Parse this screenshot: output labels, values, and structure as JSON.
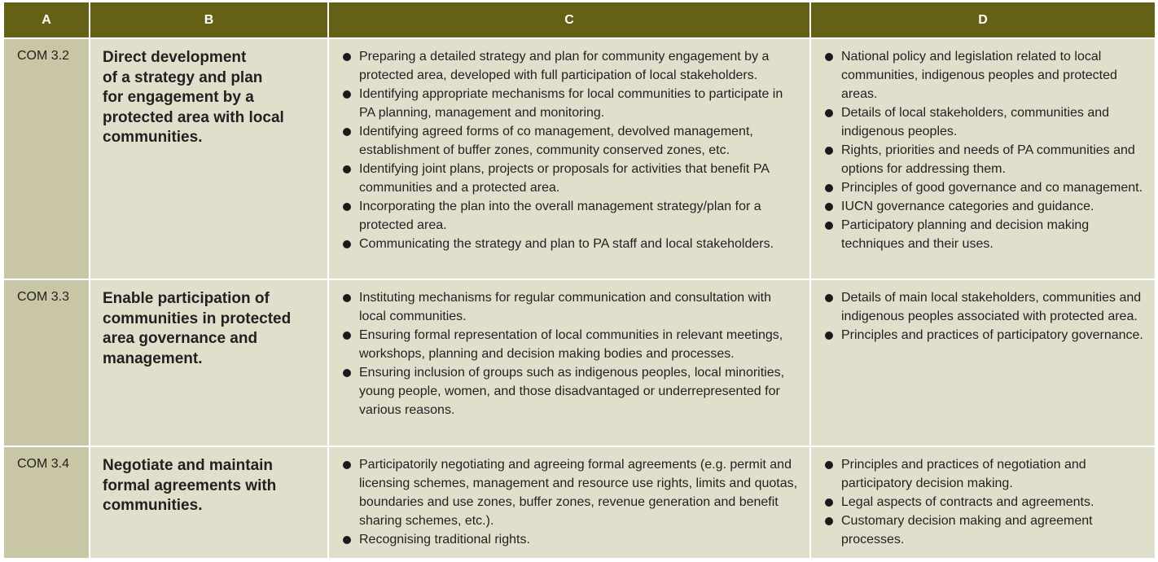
{
  "headers": [
    "A",
    "B",
    "C",
    "D"
  ],
  "rows": [
    {
      "code": "COM 3.2",
      "title": "Direct development of a strategy and plan for engagement by a protected area with local communities.",
      "title_lines": [
        "Direct development",
        "of a strategy and plan",
        "for engagement by a",
        "protected area with local",
        "communities."
      ],
      "c": [
        "Preparing a detailed strategy and plan for community engagement by a protected area, developed with full participation of local stakeholders.",
        "Identifying appropriate mechanisms for local communities to participate in PA planning, management and monitoring.",
        "Identifying agreed forms of co management, devolved management, establishment of buffer zones, community conserved zones, etc.",
        "Identifying joint plans, projects or proposals for activities that benefit PA communities and a protected area.",
        "Incorporating the plan into the overall management strategy/plan for a protected area.",
        "Communicating the strategy and plan to PA staff and local stakeholders."
      ],
      "d": [
        "National policy and legislation related to local communities, indigenous peoples and protected areas.",
        "Details of local stakeholders, communities and indigenous peoples.",
        "Rights, priorities and needs of PA communities and options for addressing them.",
        "Principles of good governance and co management.",
        "IUCN governance categories and guidance.",
        "Participatory planning and decision making techniques and their uses."
      ]
    },
    {
      "code": "COM 3.3",
      "title_lines": [
        "Enable participation of",
        "communities in protected",
        "area governance and",
        "management."
      ],
      "c": [
        "Instituting mechanisms for regular communication and consultation with local communities.",
        "Ensuring formal representation of local communities in relevant meetings, workshops, planning and decision making bodies and processes.",
        "Ensuring inclusion of groups such as indigenous peoples, local minorities, young people, women, and those disadvantaged or underrepresented for various reasons."
      ],
      "d": [
        " Details of main local stakeholders, communities and indigenous peoples associated with protected area.",
        "Principles and practices of participatory governance."
      ]
    },
    {
      "code": "COM 3.4",
      "title_lines": [
        "Negotiate and maintain",
        "formal agreements with",
        "communities."
      ],
      "c": [
        "Participatorily negotiating and agreeing formal agreements (e.g. permit and licensing schemes, management and resource use rights, limits and quotas, boundaries and use zones, buffer zones, revenue generation and benefit sharing schemes, etc.).",
        "Recognising traditional rights."
      ],
      "d": [
        "Principles and practices of negotiation and participatory decision making.",
        "Legal aspects of contracts and agreements.",
        "Customary decision making and agreement processes."
      ]
    }
  ],
  "colors": {
    "header": "#646116",
    "col_a": "#c8c6a4",
    "body": "#e0dfcc"
  }
}
